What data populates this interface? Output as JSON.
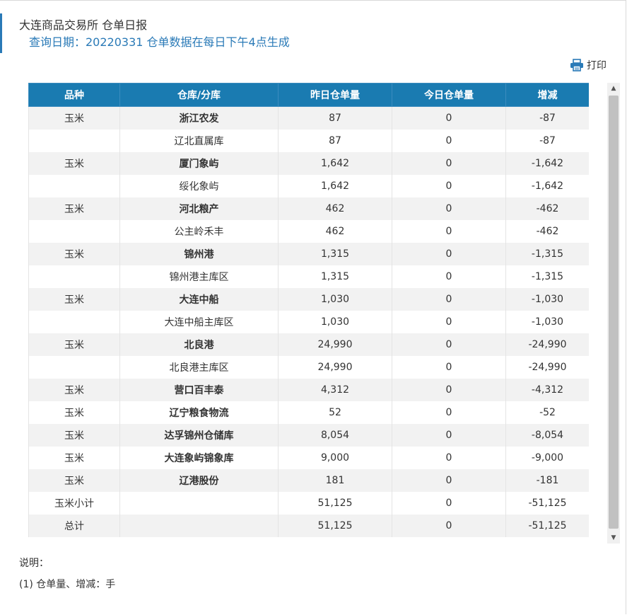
{
  "header": {
    "title": "大连商品交易所 仓单日报",
    "query": "查询日期：20220331 仓单数据在每日下午4点生成"
  },
  "toolbar": {
    "print_label": "打印",
    "print_icon": "printer-icon"
  },
  "table": {
    "columns": [
      "品种",
      "仓库/分库",
      "昨日仓单量",
      "今日仓单量",
      "增减"
    ],
    "rows": [
      {
        "variety": "玉米",
        "warehouse": "浙江农发",
        "yesterday": "87",
        "today": "0",
        "change": "-87",
        "bold": true
      },
      {
        "variety": "",
        "warehouse": "辽北直属库",
        "yesterday": "87",
        "today": "0",
        "change": "-87",
        "bold": false
      },
      {
        "variety": "玉米",
        "warehouse": "厦门象屿",
        "yesterday": "1,642",
        "today": "0",
        "change": "-1,642",
        "bold": true
      },
      {
        "variety": "",
        "warehouse": "绥化象屿",
        "yesterday": "1,642",
        "today": "0",
        "change": "-1,642",
        "bold": false
      },
      {
        "variety": "玉米",
        "warehouse": "河北粮产",
        "yesterday": "462",
        "today": "0",
        "change": "-462",
        "bold": true
      },
      {
        "variety": "",
        "warehouse": "公主岭禾丰",
        "yesterday": "462",
        "today": "0",
        "change": "-462",
        "bold": false
      },
      {
        "variety": "玉米",
        "warehouse": "锦州港",
        "yesterday": "1,315",
        "today": "0",
        "change": "-1,315",
        "bold": true
      },
      {
        "variety": "",
        "warehouse": "锦州港主库区",
        "yesterday": "1,315",
        "today": "0",
        "change": "-1,315",
        "bold": false
      },
      {
        "variety": "玉米",
        "warehouse": "大连中船",
        "yesterday": "1,030",
        "today": "0",
        "change": "-1,030",
        "bold": true
      },
      {
        "variety": "",
        "warehouse": "大连中船主库区",
        "yesterday": "1,030",
        "today": "0",
        "change": "-1,030",
        "bold": false
      },
      {
        "variety": "玉米",
        "warehouse": "北良港",
        "yesterday": "24,990",
        "today": "0",
        "change": "-24,990",
        "bold": true
      },
      {
        "variety": "",
        "warehouse": "北良港主库区",
        "yesterday": "24,990",
        "today": "0",
        "change": "-24,990",
        "bold": false
      },
      {
        "variety": "玉米",
        "warehouse": "营口百丰泰",
        "yesterday": "4,312",
        "today": "0",
        "change": "-4,312",
        "bold": true
      },
      {
        "variety": "玉米",
        "warehouse": "辽宁粮食物流",
        "yesterday": "52",
        "today": "0",
        "change": "-52",
        "bold": true
      },
      {
        "variety": "玉米",
        "warehouse": "达孚锦州仓储库",
        "yesterday": "8,054",
        "today": "0",
        "change": "-8,054",
        "bold": true
      },
      {
        "variety": "玉米",
        "warehouse": "大连象屿锦象库",
        "yesterday": "9,000",
        "today": "0",
        "change": "-9,000",
        "bold": true
      },
      {
        "variety": "玉米",
        "warehouse": "辽港股份",
        "yesterday": "181",
        "today": "0",
        "change": "-181",
        "bold": true
      },
      {
        "variety": "玉米小计",
        "warehouse": "",
        "yesterday": "51,125",
        "today": "0",
        "change": "-51,125",
        "bold": false
      },
      {
        "variety": "总计",
        "warehouse": "",
        "yesterday": "51,125",
        "today": "0",
        "change": "-51,125",
        "bold": false
      }
    ]
  },
  "notes": {
    "heading": "说明：",
    "line1": "(1) 仓单量、增减：手"
  },
  "colors": {
    "header_bg": "#1a7bb1",
    "accent": "#2a7ab7"
  }
}
